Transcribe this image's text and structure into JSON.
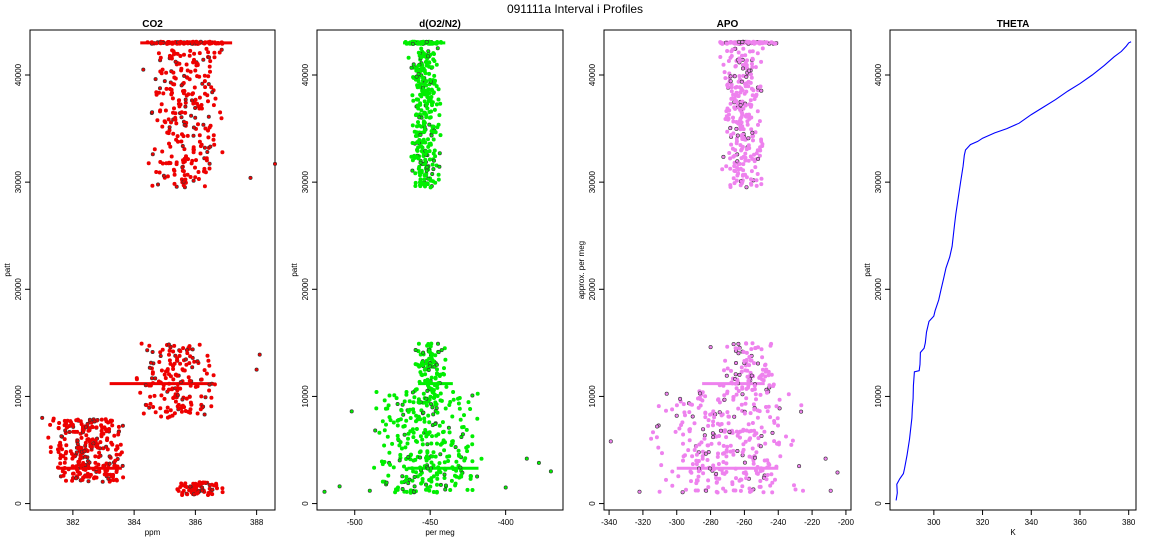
{
  "page_title": "091111a   Interval i Profiles",
  "colors": {
    "co2": "#ee0000",
    "o2n2": "#00ee00",
    "apo": "#ee82ee",
    "theta": "#0000ff",
    "outline": "#000000"
  },
  "chart_data": [
    {
      "type": "scatter",
      "title": "CO2",
      "xlabel": "ppm",
      "ylabel": "patt",
      "xlim": [
        380.6,
        388.6
      ],
      "ylim": [
        -600,
        44200
      ],
      "xticks": [
        382,
        384,
        386,
        388
      ],
      "xtick_labels": [
        "382",
        "384",
        "386",
        "388"
      ],
      "yticks": [
        0,
        10000,
        20000,
        30000,
        40000
      ],
      "ytick_labels": [
        "0",
        "10000",
        "20000",
        "30000",
        "40000"
      ],
      "series": [
        {
          "color": "#ee0000",
          "clusters": [
            {
              "x": [
                384.2,
                387.2
              ],
              "y": [
                42900,
                43100
              ],
              "n": 110
            },
            {
              "x": [
                384.4,
                387.0
              ],
              "y": [
                29500,
                42500
              ],
              "n": 260
            },
            {
              "x": [
                384.0,
                386.8
              ],
              "y": [
                8000,
                15000
              ],
              "n": 170
            },
            {
              "x": [
                381.0,
                383.8
              ],
              "y": [
                2000,
                8000
              ],
              "n": 280
            },
            {
              "x": [
                385.2,
                387.0
              ],
              "y": [
                800,
                2000
              ],
              "n": 70
            }
          ],
          "band_lines": [
            {
              "x": [
                384.2,
                387.2
              ],
              "y": 43000
            },
            {
              "x": [
                383.2,
                386.6
              ],
              "y": 11200
            },
            {
              "x": [
                381.5,
                383.6
              ],
              "y": 3300
            }
          ],
          "outliers": [
            [
              388.6,
              31700
            ],
            [
              387.8,
              30400
            ],
            [
              388.1,
              13900
            ],
            [
              381.0,
              8000
            ],
            [
              383.2,
              4400
            ],
            [
              384.3,
              40500
            ],
            [
              388.0,
              12500
            ]
          ]
        }
      ]
    },
    {
      "type": "scatter",
      "title": "d(O2/N2)",
      "xlabel": "per meg",
      "ylabel": "patt",
      "xlim": [
        -525,
        -362
      ],
      "ylim": [
        -600,
        44200
      ],
      "xticks": [
        -500,
        -450,
        -400
      ],
      "xtick_labels": [
        "-500",
        "-450",
        "-400"
      ],
      "yticks": [
        0,
        10000,
        20000,
        30000,
        40000
      ],
      "ytick_labels": [
        "0",
        "10000",
        "20000",
        "30000",
        "40000"
      ],
      "series": [
        {
          "color": "#00ee00",
          "clusters": [
            {
              "x": [
                -468,
                -440
              ],
              "y": [
                42900,
                43100
              ],
              "n": 90
            },
            {
              "x": [
                -465,
                -442
              ],
              "y": [
                29500,
                42500
              ],
              "n": 300
            },
            {
              "x": [
                -462,
                -438
              ],
              "y": [
                10500,
                15000
              ],
              "n": 100
            },
            {
              "x": [
                -490,
                -415
              ],
              "y": [
                1000,
                10500
              ],
              "n": 320
            }
          ],
          "band_lines": [
            {
              "x": [
                -468,
                -440
              ],
              "y": 43000
            },
            {
              "x": [
                -458,
                -435
              ],
              "y": 11200
            },
            {
              "x": [
                -465,
                -418
              ],
              "y": 3300
            }
          ],
          "outliers": [
            [
              -520,
              1100
            ],
            [
              -510,
              1600
            ],
            [
              -502,
              8600
            ],
            [
              -386,
              4200
            ],
            [
              -378,
              3800
            ],
            [
              -370,
              3000
            ],
            [
              -400,
              1500
            ],
            [
              -490,
              1200
            ]
          ]
        }
      ]
    },
    {
      "type": "scatter",
      "title": "APO",
      "xlabel": "",
      "ylabel": "approx. per meg",
      "xlim": [
        -343,
        -197
      ],
      "ylim": [
        -600,
        44200
      ],
      "xticks": [
        -340,
        -320,
        -300,
        -280,
        -260,
        -240,
        -220,
        -200
      ],
      "xtick_labels": [
        "-340",
        "-320",
        "-300",
        "-280",
        "-260",
        "-240",
        "-220",
        "-200"
      ],
      "yticks": [
        0,
        10000,
        20000,
        30000,
        40000
      ],
      "ytick_labels": [
        "0",
        "10000",
        "20000",
        "30000",
        "40000"
      ],
      "series": [
        {
          "color": "#ee82ee",
          "clusters": [
            {
              "x": [
                -275,
                -240
              ],
              "y": [
                42900,
                43100
              ],
              "n": 90
            },
            {
              "x": [
                -275,
                -248
              ],
              "y": [
                29500,
                42500
              ],
              "n": 280
            },
            {
              "x": [
                -275,
                -240
              ],
              "y": [
                10500,
                15000
              ],
              "n": 100
            },
            {
              "x": [
                -320,
                -220
              ],
              "y": [
                1000,
                10500
              ],
              "n": 320
            }
          ],
          "band_lines": [
            {
              "x": [
                -275,
                -240
              ],
              "y": 43000
            },
            {
              "x": [
                -285,
                -248
              ],
              "y": 11200
            },
            {
              "x": [
                -300,
                -240
              ],
              "y": 3300
            }
          ],
          "outliers": [
            [
              -339,
              5800
            ],
            [
              -322,
              1100
            ],
            [
              -209,
              1200
            ],
            [
              -205,
              2900
            ],
            [
              -212,
              4200
            ],
            [
              -300,
              8200
            ],
            [
              -280,
              14600
            ]
          ]
        }
      ]
    },
    {
      "type": "line",
      "title": "THETA",
      "xlabel": "K",
      "ylabel": "patt",
      "xlim": [
        282,
        383
      ],
      "ylim": [
        -600,
        44200
      ],
      "xticks": [
        300,
        320,
        340,
        360,
        380
      ],
      "xtick_labels": [
        "300",
        "320",
        "340",
        "360",
        "380"
      ],
      "yticks": [
        0,
        10000,
        20000,
        30000,
        40000
      ],
      "ytick_labels": [
        "0",
        "10000",
        "20000",
        "30000",
        "40000"
      ],
      "series": [
        {
          "color": "#0000ff",
          "x": [
            284.5,
            285,
            284.8,
            285.5,
            286,
            287.5,
            288,
            289,
            290,
            290.5,
            291,
            291.2,
            291.5,
            291.6,
            292,
            294,
            294.3,
            294.5,
            296,
            296.5,
            297,
            298,
            300,
            300.5,
            302,
            303,
            304,
            305,
            306.5,
            307.5,
            308,
            308.5,
            309,
            310,
            311,
            312,
            312.5,
            313,
            315,
            318,
            320,
            322,
            325,
            330,
            335,
            340,
            345,
            350,
            355,
            360,
            365,
            370,
            374,
            377,
            379,
            380,
            381
          ],
          "y": [
            300,
            1000,
            1800,
            2100,
            2300,
            2800,
            3300,
            4500,
            6000,
            7000,
            8000,
            9000,
            9800,
            11000,
            12300,
            12400,
            13000,
            14100,
            14500,
            15000,
            16000,
            17000,
            17500,
            18000,
            19000,
            20000,
            21000,
            22000,
            23000,
            24000,
            25000,
            26000,
            27000,
            28500,
            30000,
            31500,
            32500,
            33000,
            33500,
            33800,
            34100,
            34300,
            34600,
            35000,
            35500,
            36300,
            37000,
            37700,
            38500,
            39200,
            40000,
            40900,
            41700,
            42200,
            42700,
            43000,
            43100
          ]
        }
      ]
    }
  ]
}
